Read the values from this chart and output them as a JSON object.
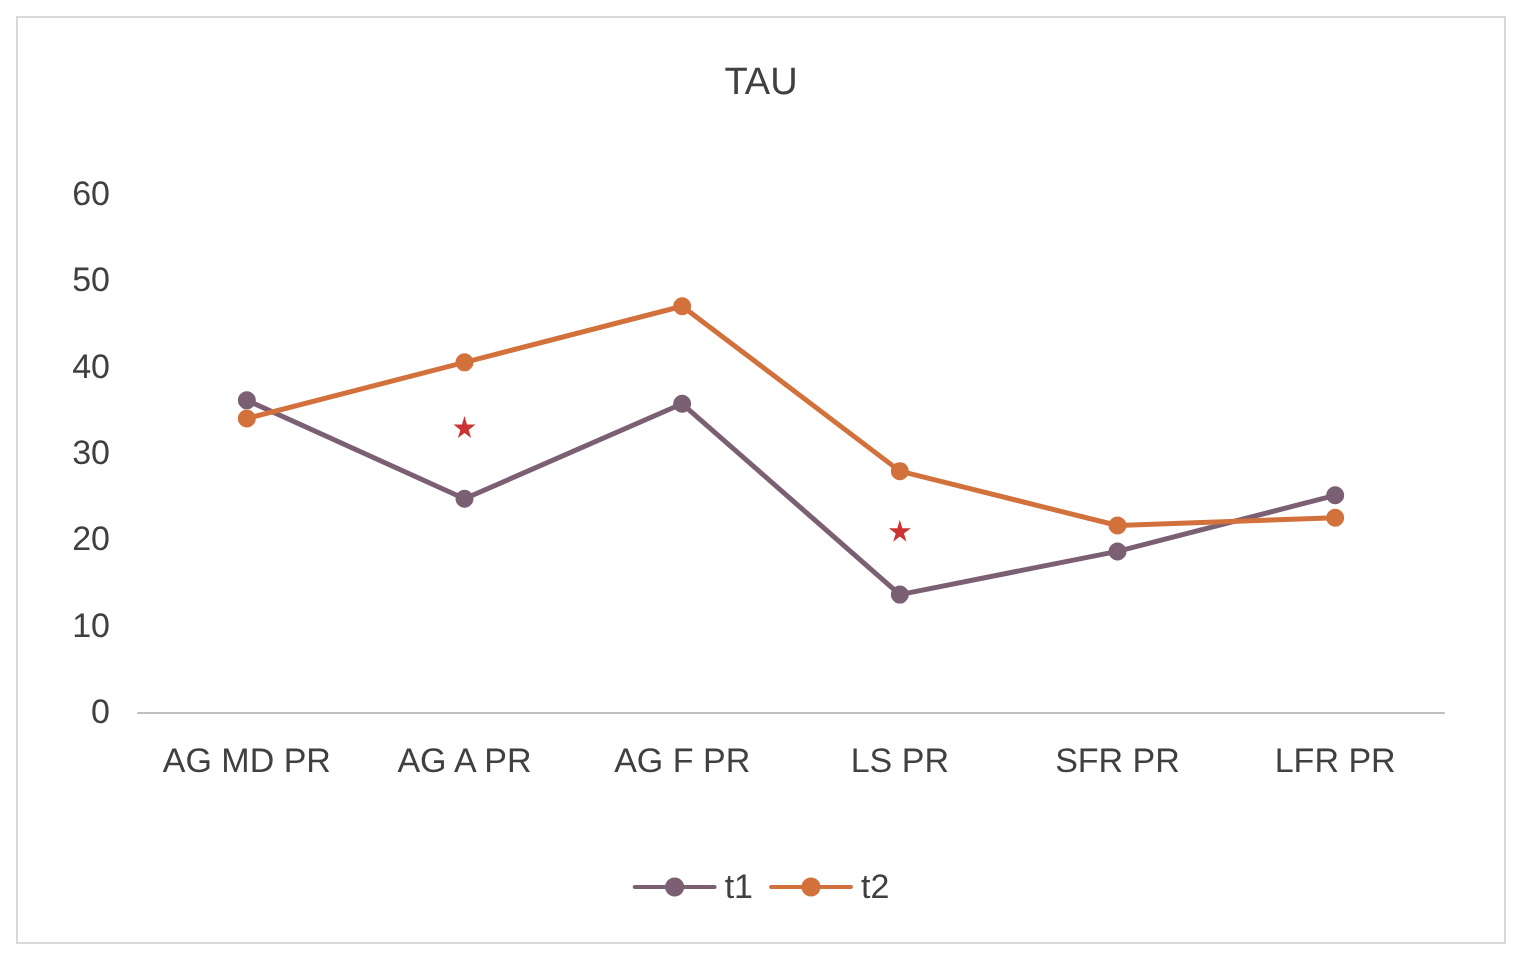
{
  "chart_data": {
    "type": "line",
    "title": "TAU",
    "categories": [
      "AG MD PR",
      "AG A PR",
      "AG F PR",
      "LS PR",
      "SFR PR",
      "LFR PR"
    ],
    "series": [
      {
        "name": "t1",
        "color": "#7b5f73",
        "values": [
          36.1,
          24.7,
          35.7,
          13.6,
          18.6,
          25.1
        ]
      },
      {
        "name": "t2",
        "color": "#d2713c",
        "values": [
          34,
          40.5,
          47,
          27.9,
          21.6,
          22.5
        ]
      },
      {
        "type": "scatter",
        "marker": "star",
        "color": "#c00000",
        "x": [
          "AG A PR",
          "LS PR"
        ],
        "values": [
          33,
          21
        ]
      }
    ],
    "ylim": [
      0,
      60
    ],
    "yticks": [
      0,
      10,
      20,
      30,
      40,
      50,
      60
    ],
    "grid": false,
    "legend": "bottom",
    "marker": "circle",
    "line_style": "solid"
  }
}
